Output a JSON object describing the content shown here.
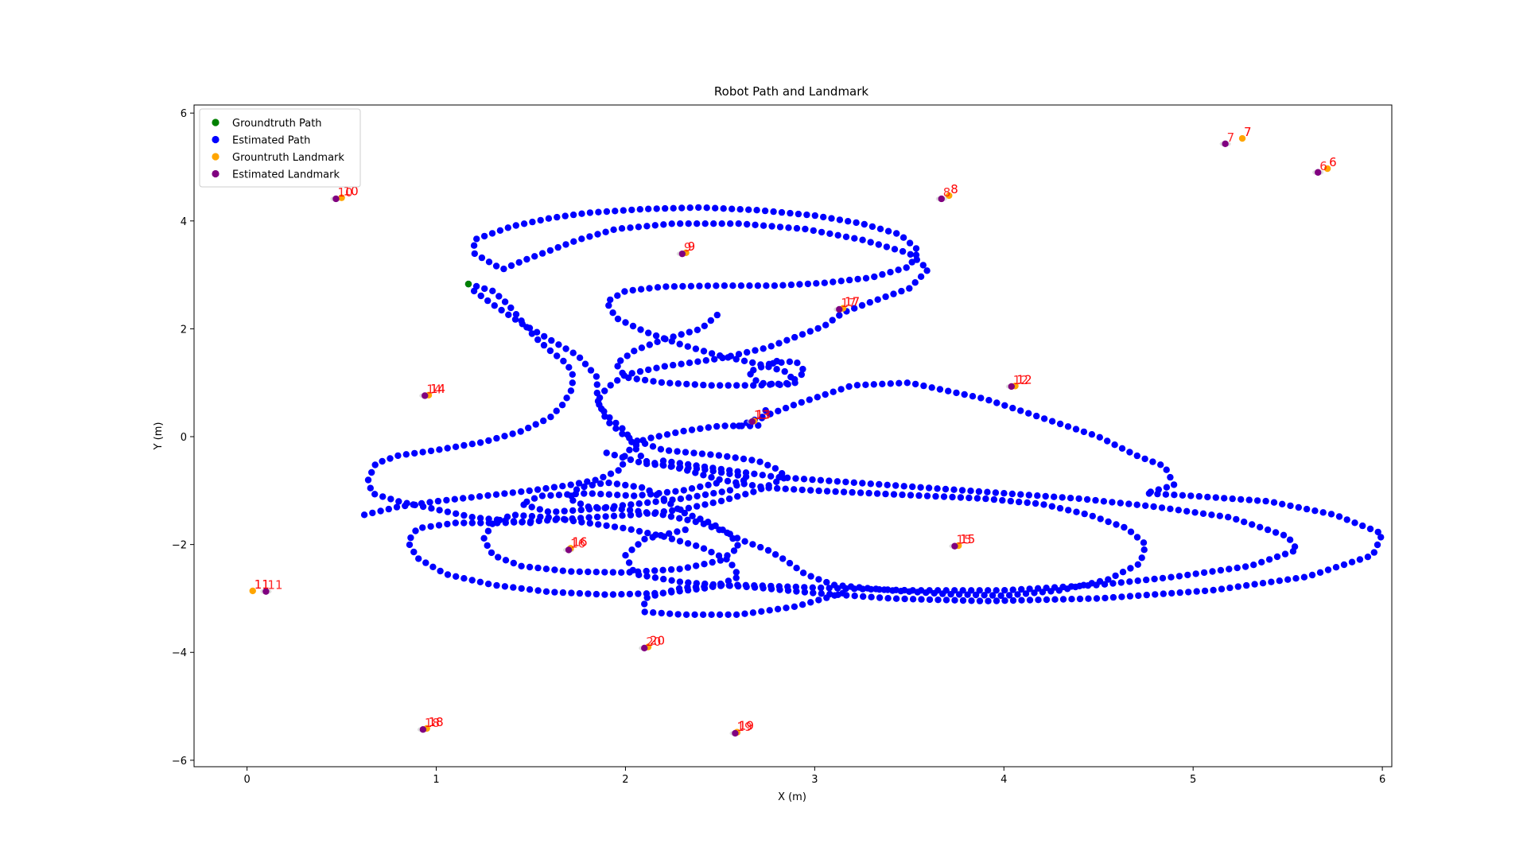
{
  "chart_data": {
    "type": "scatter",
    "title": "Robot Path and Landmark",
    "xlabel": "X (m)",
    "ylabel": "Y (m)",
    "xlim": [
      -0.28,
      6.05
    ],
    "ylim": [
      -6.12,
      6.15
    ],
    "xticks": [
      0,
      1,
      2,
      3,
      4,
      5,
      6
    ],
    "yticks": [
      -6,
      -4,
      -2,
      0,
      2,
      4,
      6
    ],
    "grid": false,
    "legend_position": "top-left",
    "legend": [
      {
        "label": "Groundtruth Path",
        "color": "#008000"
      },
      {
        "label": "Estimated Path",
        "color": "#0000ff"
      },
      {
        "label": "Grountruth Landmark",
        "color": "#ffa500"
      },
      {
        "label": "Estimated Landmark",
        "color": "#800080"
      }
    ],
    "groundtruth_path": [
      [
        1.17,
        2.83
      ]
    ],
    "estimated_path_strokes": [
      [
        [
          1.17,
          2.83
        ],
        [
          1.3,
          2.7
        ],
        [
          1.38,
          2.45
        ],
        [
          1.45,
          2.15
        ],
        [
          1.52,
          1.85
        ],
        [
          1.6,
          1.6
        ],
        [
          1.68,
          1.38
        ],
        [
          1.72,
          1.2
        ],
        [
          1.72,
          0.9
        ],
        [
          1.67,
          0.6
        ],
        [
          1.6,
          0.35
        ],
        [
          1.45,
          0.1
        ],
        [
          1.25,
          -0.1
        ],
        [
          1.0,
          -0.25
        ],
        [
          0.8,
          -0.35
        ],
        [
          0.68,
          -0.5
        ],
        [
          0.64,
          -0.8
        ],
        [
          0.66,
          -1.05
        ],
        [
          0.8,
          -1.2
        ],
        [
          1.0,
          -1.35
        ],
        [
          1.2,
          -1.5
        ],
        [
          1.5,
          -1.6
        ]
      ],
      [
        [
          0.62,
          -1.45
        ],
        [
          0.8,
          -1.3
        ],
        [
          1.0,
          -1.2
        ],
        [
          1.25,
          -1.1
        ],
        [
          1.5,
          -1.0
        ],
        [
          1.7,
          -0.9
        ],
        [
          1.85,
          -0.8
        ],
        [
          1.98,
          -0.6
        ],
        [
          2.0,
          -0.3
        ],
        [
          2.1,
          -0.05
        ],
        [
          2.3,
          0.1
        ],
        [
          2.5,
          0.2
        ],
        [
          2.7,
          0.2
        ],
        [
          2.75,
          0.55
        ]
      ],
      [
        [
          1.2,
          2.7
        ],
        [
          1.3,
          2.45
        ],
        [
          1.45,
          2.1
        ],
        [
          1.6,
          1.8
        ],
        [
          1.75,
          1.5
        ],
        [
          1.85,
          1.1
        ],
        [
          1.85,
          0.7
        ],
        [
          1.9,
          0.3
        ],
        [
          2.0,
          0.0
        ],
        [
          2.2,
          -0.25
        ],
        [
          2.5,
          -0.35
        ],
        [
          2.7,
          -0.45
        ],
        [
          2.8,
          -0.6
        ],
        [
          2.85,
          -0.75
        ],
        [
          2.7,
          -1.0
        ],
        [
          2.5,
          -1.2
        ],
        [
          2.3,
          -1.35
        ],
        [
          2.05,
          -1.45
        ],
        [
          1.8,
          -1.5
        ],
        [
          1.6,
          -1.55
        ],
        [
          1.35,
          -1.6
        ],
        [
          1.1,
          -1.6
        ],
        [
          0.9,
          -1.7
        ],
        [
          0.85,
          -1.95
        ],
        [
          0.9,
          -2.25
        ],
        [
          1.05,
          -2.55
        ],
        [
          1.3,
          -2.75
        ],
        [
          1.6,
          -2.88
        ],
        [
          1.9,
          -2.93
        ],
        [
          2.2,
          -2.9
        ],
        [
          2.45,
          -2.8
        ],
        [
          2.6,
          -2.6
        ],
        [
          2.55,
          -2.3
        ],
        [
          2.4,
          -2.05
        ],
        [
          2.2,
          -1.85
        ],
        [
          2.0,
          -1.7
        ],
        [
          1.8,
          -1.6
        ],
        [
          1.6,
          -1.5
        ],
        [
          1.4,
          -1.45
        ],
        [
          1.3,
          -1.6
        ],
        [
          1.25,
          -1.9
        ],
        [
          1.3,
          -2.2
        ],
        [
          1.45,
          -2.4
        ],
        [
          1.7,
          -2.5
        ],
        [
          2.0,
          -2.52
        ],
        [
          2.3,
          -2.45
        ],
        [
          2.5,
          -2.3
        ],
        [
          2.6,
          -2.05
        ],
        [
          2.55,
          -1.8
        ],
        [
          2.4,
          -1.6
        ],
        [
          2.2,
          -1.45
        ],
        [
          2.0,
          -1.35
        ],
        [
          1.8,
          -1.3
        ],
        [
          1.7,
          -1.15
        ],
        [
          1.75,
          -0.95
        ],
        [
          1.9,
          -0.85
        ],
        [
          2.1,
          -0.95
        ],
        [
          2.2,
          -1.15
        ],
        [
          2.3,
          -1.4
        ],
        [
          2.45,
          -1.6
        ],
        [
          2.6,
          -1.9
        ],
        [
          2.75,
          -2.1
        ],
        [
          2.85,
          -2.3
        ],
        [
          2.95,
          -2.55
        ],
        [
          3.1,
          -2.75
        ],
        [
          3.4,
          -2.85
        ],
        [
          3.7,
          -2.92
        ],
        [
          4.0,
          -2.95
        ],
        [
          4.3,
          -2.85
        ],
        [
          4.55,
          -2.65
        ],
        [
          4.72,
          -2.35
        ],
        [
          4.75,
          -2.0
        ],
        [
          4.65,
          -1.7
        ],
        [
          4.45,
          -1.45
        ],
        [
          4.2,
          -1.25
        ],
        [
          3.9,
          -1.15
        ],
        [
          3.6,
          -1.1
        ],
        [
          3.3,
          -1.05
        ],
        [
          3.0,
          -1.0
        ],
        [
          2.75,
          -0.95
        ],
        [
          2.5,
          -0.8
        ],
        [
          2.3,
          -0.6
        ],
        [
          2.1,
          -0.45
        ],
        [
          2.05,
          -0.2
        ],
        [
          2.0,
          0.1
        ],
        [
          1.9,
          0.4
        ],
        [
          1.85,
          0.65
        ],
        [
          1.9,
          0.9
        ],
        [
          2.0,
          1.15
        ],
        [
          2.2,
          1.3
        ],
        [
          2.5,
          1.45
        ],
        [
          2.75,
          1.65
        ],
        [
          2.9,
          1.85
        ],
        [
          3.05,
          2.05
        ],
        [
          3.15,
          2.3
        ],
        [
          3.3,
          2.5
        ],
        [
          3.5,
          2.75
        ],
        [
          3.6,
          3.1
        ],
        [
          3.5,
          3.4
        ],
        [
          3.25,
          3.65
        ],
        [
          2.95,
          3.85
        ],
        [
          2.6,
          3.95
        ],
        [
          2.25,
          3.95
        ],
        [
          1.95,
          3.85
        ],
        [
          1.75,
          3.65
        ],
        [
          1.6,
          3.45
        ],
        [
          1.45,
          3.25
        ],
        [
          1.35,
          3.1
        ],
        [
          1.2,
          3.4
        ],
        [
          1.2,
          3.65
        ],
        [
          1.4,
          3.9
        ],
        [
          1.6,
          4.05
        ],
        [
          1.8,
          4.15
        ],
        [
          2.1,
          4.22
        ],
        [
          2.4,
          4.25
        ],
        [
          2.7,
          4.2
        ],
        [
          3.0,
          4.1
        ],
        [
          3.25,
          3.95
        ],
        [
          3.45,
          3.75
        ],
        [
          3.55,
          3.45
        ],
        [
          3.5,
          3.15
        ],
        [
          3.3,
          2.95
        ],
        [
          3.05,
          2.85
        ],
        [
          2.8,
          2.8
        ],
        [
          2.5,
          2.8
        ],
        [
          2.2,
          2.78
        ],
        [
          2.0,
          2.7
        ],
        [
          1.9,
          2.5
        ],
        [
          1.95,
          2.2
        ],
        [
          2.1,
          1.95
        ],
        [
          2.3,
          1.7
        ],
        [
          2.5,
          1.5
        ],
        [
          2.7,
          1.35
        ],
        [
          2.85,
          1.2
        ],
        [
          2.9,
          1.0
        ],
        [
          2.7,
          0.95
        ],
        [
          2.45,
          0.95
        ],
        [
          2.2,
          1.0
        ],
        [
          2.0,
          1.1
        ],
        [
          1.95,
          1.35
        ],
        [
          2.05,
          1.6
        ],
        [
          2.2,
          1.8
        ],
        [
          2.4,
          2.0
        ],
        [
          2.5,
          2.3
        ]
      ],
      [
        [
          2.8,
          1.4
        ],
        [
          2.65,
          1.2
        ],
        [
          2.7,
          1.0
        ],
        [
          2.85,
          0.95
        ],
        [
          2.95,
          1.2
        ],
        [
          2.9,
          1.4
        ],
        [
          2.75,
          1.35
        ]
      ],
      [
        [
          2.6,
          0.2
        ],
        [
          2.9,
          0.6
        ],
        [
          3.2,
          0.95
        ],
        [
          3.5,
          1.0
        ],
        [
          3.9,
          0.7
        ],
        [
          4.2,
          0.35
        ],
        [
          4.5,
          0.0
        ],
        [
          4.7,
          -0.35
        ],
        [
          4.85,
          -0.55
        ],
        [
          4.9,
          -0.9
        ],
        [
          4.75,
          -1.05
        ],
        [
          5.0,
          -1.1
        ],
        [
          5.4,
          -1.2
        ],
        [
          5.75,
          -1.45
        ],
        [
          6.0,
          -1.8
        ],
        [
          5.95,
          -2.2
        ],
        [
          5.6,
          -2.6
        ],
        [
          5.1,
          -2.85
        ],
        [
          4.5,
          -3.0
        ],
        [
          3.9,
          -3.05
        ],
        [
          3.4,
          -3.0
        ],
        [
          3.0,
          -2.9
        ],
        [
          2.7,
          -2.8
        ],
        [
          2.3,
          -2.7
        ],
        [
          2.05,
          -2.55
        ],
        [
          2.0,
          -2.2
        ],
        [
          2.1,
          -1.9
        ],
        [
          2.35,
          -1.7
        ]
      ],
      [
        [
          2.2,
          -0.45
        ],
        [
          2.5,
          -0.6
        ],
        [
          2.8,
          -0.75
        ],
        [
          3.2,
          -0.85
        ],
        [
          3.6,
          -0.95
        ],
        [
          4.0,
          -1.05
        ],
        [
          4.4,
          -1.15
        ],
        [
          4.8,
          -1.3
        ],
        [
          5.2,
          -1.5
        ],
        [
          5.5,
          -1.85
        ],
        [
          5.55,
          -2.1
        ],
        [
          5.3,
          -2.4
        ],
        [
          4.9,
          -2.6
        ],
        [
          4.5,
          -2.75
        ],
        [
          4.0,
          -2.85
        ],
        [
          3.5,
          -2.85
        ],
        [
          3.0,
          -2.8
        ],
        [
          2.6,
          -2.75
        ],
        [
          2.3,
          -2.8
        ],
        [
          2.1,
          -3.0
        ],
        [
          2.1,
          -3.25
        ],
        [
          2.3,
          -3.3
        ],
        [
          2.6,
          -3.3
        ],
        [
          2.9,
          -3.15
        ],
        [
          3.15,
          -2.9
        ]
      ],
      [
        [
          1.9,
          -0.3
        ],
        [
          2.1,
          -0.5
        ],
        [
          2.4,
          -0.6
        ],
        [
          2.65,
          -0.75
        ],
        [
          2.55,
          -1.0
        ],
        [
          2.3,
          -1.15
        ],
        [
          2.05,
          -1.25
        ],
        [
          1.8,
          -1.35
        ],
        [
          1.6,
          -1.4
        ],
        [
          1.45,
          -1.25
        ],
        [
          1.55,
          -1.1
        ],
        [
          1.8,
          -1.05
        ],
        [
          2.05,
          -1.1
        ],
        [
          2.3,
          -1.0
        ],
        [
          2.5,
          -0.85
        ]
      ]
    ],
    "landmarks": [
      {
        "id": "6",
        "groundtruth": [
          5.71,
          4.97
        ],
        "estimated": [
          5.66,
          4.9
        ]
      },
      {
        "id": "7",
        "groundtruth": [
          5.26,
          5.53
        ],
        "estimated": [
          5.17,
          5.43
        ]
      },
      {
        "id": "8",
        "groundtruth": [
          3.71,
          4.47
        ],
        "estimated": [
          3.67,
          4.41
        ]
      },
      {
        "id": "9",
        "groundtruth": [
          2.32,
          3.41
        ],
        "estimated": [
          2.3,
          3.39
        ]
      },
      {
        "id": "10",
        "groundtruth": [
          0.5,
          4.43
        ],
        "estimated": [
          0.47,
          4.41
        ]
      },
      {
        "id": "11",
        "groundtruth": [
          0.03,
          -2.86
        ],
        "estimated": [
          0.1,
          -2.87
        ]
      },
      {
        "id": "12",
        "groundtruth": [
          4.06,
          0.94
        ],
        "estimated": [
          4.04,
          0.93
        ]
      },
      {
        "id": "13",
        "groundtruth": [
          2.68,
          0.29
        ],
        "estimated": [
          2.67,
          0.28
        ]
      },
      {
        "id": "14",
        "groundtruth": [
          0.96,
          0.77
        ],
        "estimated": [
          0.94,
          0.76
        ]
      },
      {
        "id": "15",
        "groundtruth": [
          3.76,
          -2.02
        ],
        "estimated": [
          3.74,
          -2.03
        ]
      },
      {
        "id": "16",
        "groundtruth": [
          1.71,
          -2.07
        ],
        "estimated": [
          1.7,
          -2.1
        ]
      },
      {
        "id": "17",
        "groundtruth": [
          3.15,
          2.38
        ],
        "estimated": [
          3.13,
          2.36
        ]
      },
      {
        "id": "18",
        "groundtruth": [
          0.95,
          -5.41
        ],
        "estimated": [
          0.93,
          -5.43
        ]
      },
      {
        "id": "19",
        "groundtruth": [
          2.59,
          -5.48
        ],
        "estimated": [
          2.58,
          -5.5
        ]
      },
      {
        "id": "20",
        "groundtruth": [
          2.12,
          -3.9
        ],
        "estimated": [
          2.1,
          -3.92
        ]
      }
    ]
  }
}
